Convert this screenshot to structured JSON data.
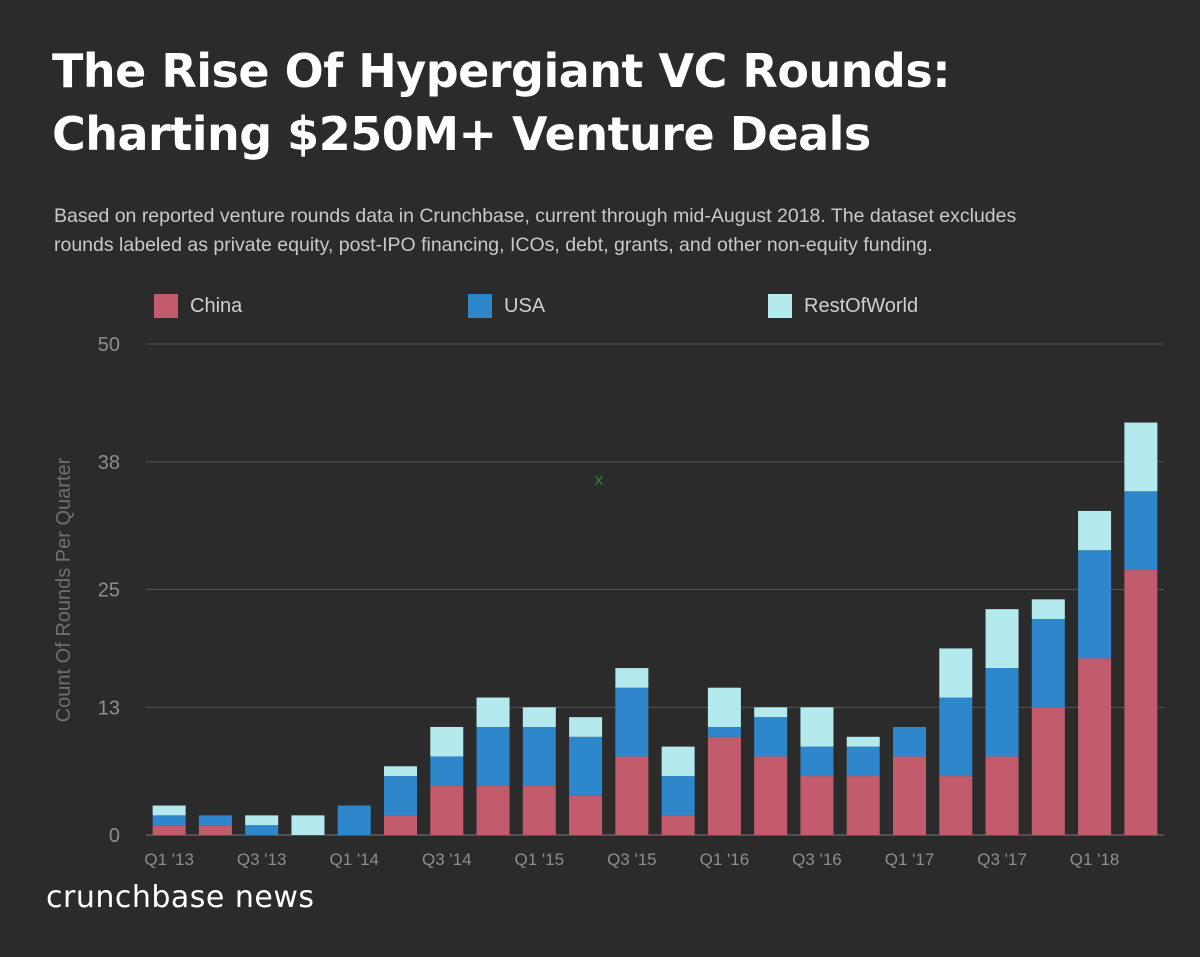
{
  "title": {
    "line1": "The Rise Of Hypergiant VC Rounds:",
    "line2": "Charting $250M+ Venture Deals"
  },
  "subtitle": {
    "line1": "Based on reported venture rounds data in Crunchbase, current through mid-August 2018. The dataset excludes",
    "line2": "rounds labeled as private equity, post-IPO financing, ICOs, debt, grants, and other non-equity funding."
  },
  "legend": [
    {
      "label": "China",
      "color": "#c25c6c"
    },
    {
      "label": "USA",
      "color": "#2f87cb"
    },
    {
      "label": "RestOfWorld",
      "color": "#b4eaee"
    }
  ],
  "brand": "crunchbase news",
  "marker": "x",
  "chart_data": {
    "type": "bar",
    "stacked": true,
    "title": "The Rise Of Hypergiant VC Rounds: Charting $250M+ Venture Deals",
    "xlabel": "",
    "ylabel": "Count Of Rounds Per Quarter",
    "ylim": [
      0,
      50
    ],
    "yticks": [
      0,
      13,
      25,
      38,
      50
    ],
    "grid": true,
    "legend_position": "top",
    "categories": [
      "Q1 '13",
      "Q2 '13",
      "Q3 '13",
      "Q4 '13",
      "Q1 '14",
      "Q2 '14",
      "Q3 '14",
      "Q4 '14",
      "Q1 '15",
      "Q2 '15",
      "Q3 '15",
      "Q4 '15",
      "Q1 '16",
      "Q2 '16",
      "Q3 '16",
      "Q4 '16",
      "Q1 '17",
      "Q2 '17",
      "Q3 '17",
      "Q4 '17",
      "Q1 '18",
      "Q2 '18"
    ],
    "xtick_labels": [
      "Q1 '13",
      "Q3 '13",
      "Q1 '14",
      "Q3 '14",
      "Q1 '15",
      "Q3 '15",
      "Q1 '16",
      "Q3 '16",
      "Q1 '17",
      "Q3 '17",
      "Q1 '18"
    ],
    "series": [
      {
        "name": "China",
        "color": "#c25c6c",
        "values": [
          1,
          1,
          0,
          0,
          0,
          2,
          5,
          5,
          5,
          4,
          8,
          2,
          10,
          8,
          6,
          6,
          8,
          6,
          8,
          13,
          18,
          27
        ]
      },
      {
        "name": "USA",
        "color": "#2f87cb",
        "values": [
          1,
          1,
          1,
          0,
          3,
          4,
          3,
          6,
          6,
          6,
          7,
          4,
          1,
          4,
          3,
          3,
          3,
          8,
          9,
          9,
          11,
          8
        ]
      },
      {
        "name": "RestOfWorld",
        "color": "#b4eaee",
        "values": [
          1,
          0,
          1,
          2,
          0,
          1,
          3,
          3,
          2,
          2,
          2,
          3,
          4,
          1,
          4,
          1,
          0,
          5,
          6,
          2,
          4,
          7
        ]
      }
    ]
  }
}
